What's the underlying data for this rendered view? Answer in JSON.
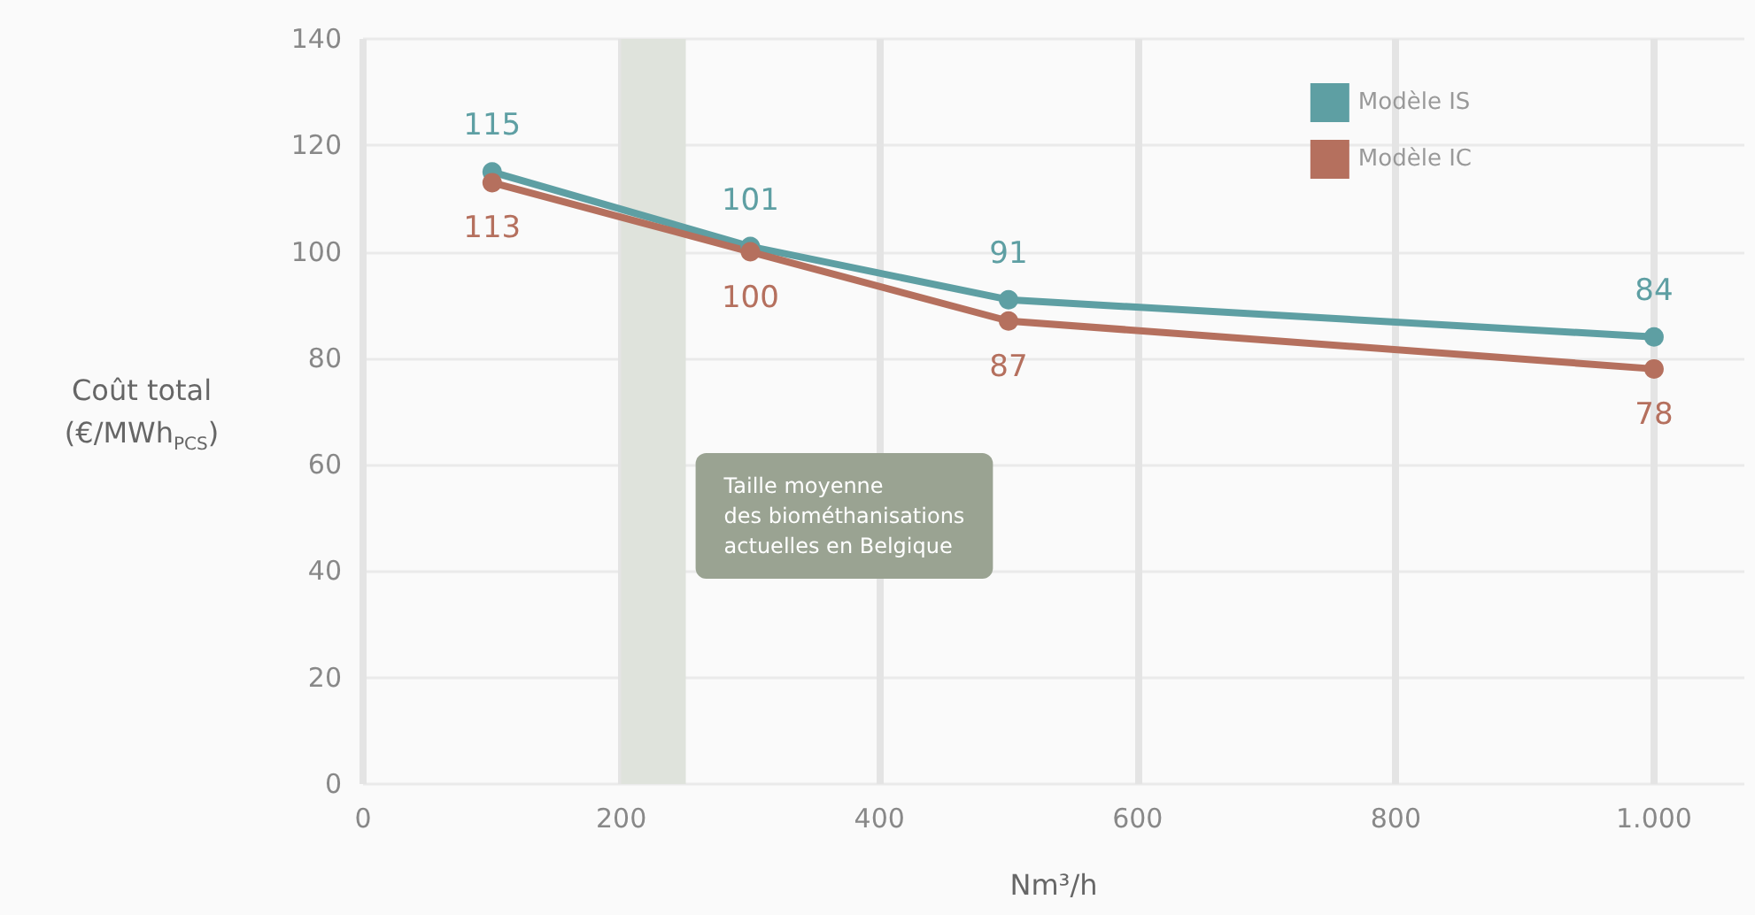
{
  "chart_data": {
    "type": "line",
    "xlabel": "Nm³/h",
    "ylabel": "Coût total\n(€/MWh$_{PCS}$)",
    "x": [
      100,
      300,
      500,
      1000
    ],
    "series": [
      {
        "name": "Modèle IS",
        "color": "#5e9fa3",
        "values": [
          115,
          101,
          91,
          84
        ]
      },
      {
        "name": "Modèle IC",
        "color": "#b5705e",
        "values": [
          113,
          100,
          87,
          78
        ]
      }
    ],
    "xlim": [
      0,
      1070
    ],
    "xticks": [
      0,
      200,
      400,
      600,
      800,
      {
        "value": 1000,
        "label": "1.000"
      }
    ],
    "ylim": [
      0,
      140
    ],
    "yticks": [
      0,
      20,
      40,
      60,
      80,
      100,
      120,
      140
    ],
    "bands": [
      {
        "axis": "x",
        "from": 200,
        "to": 250,
        "label": "Taille moyenne\ndes biométhanisations\nactuelles en Belgique",
        "color": "#dfe3dc"
      }
    ],
    "data_labels": true,
    "grid": true,
    "legend": "top right",
    "marker": "circle",
    "line_style": "solid"
  }
}
